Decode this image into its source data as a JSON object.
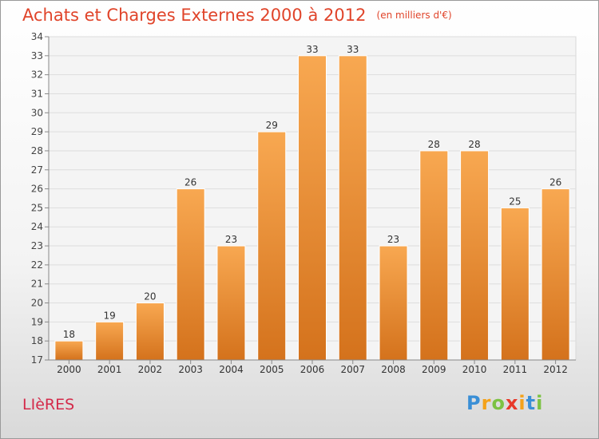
{
  "title": "Achats et Charges Externes 2000 à 2012",
  "subtitle": "(en milliers d'€)",
  "commune": "LIèRES",
  "brand": {
    "letters": [
      "P",
      "r",
      "o",
      "x",
      "i",
      "t",
      "i"
    ],
    "colors": [
      "#3a8fd6",
      "#f4a21a",
      "#7cc243",
      "#e8392a",
      "#f4a21a",
      "#3a8fd6",
      "#7cc243"
    ]
  },
  "colors": {
    "bar_top": "#f8a851",
    "bar_bottom": "#d4721c",
    "title": "#e0442a",
    "commune": "#d42a4a"
  },
  "chart_data": {
    "type": "bar",
    "title": "Achats et Charges Externes 2000 à 2012",
    "subtitle": "(en milliers d'€)",
    "categories": [
      "2000",
      "2001",
      "2002",
      "2003",
      "2004",
      "2005",
      "2006",
      "2007",
      "2008",
      "2009",
      "2010",
      "2011",
      "2012"
    ],
    "values": [
      18,
      19,
      20,
      26,
      23,
      29,
      33,
      33,
      23,
      28,
      28,
      25,
      26
    ],
    "ylim": [
      17,
      34
    ],
    "yticks": [
      17,
      18,
      19,
      20,
      21,
      22,
      23,
      24,
      25,
      26,
      27,
      28,
      29,
      30,
      31,
      32,
      33,
      34
    ],
    "xlabel": "",
    "ylabel": "",
    "grid": true,
    "data_labels": true
  }
}
